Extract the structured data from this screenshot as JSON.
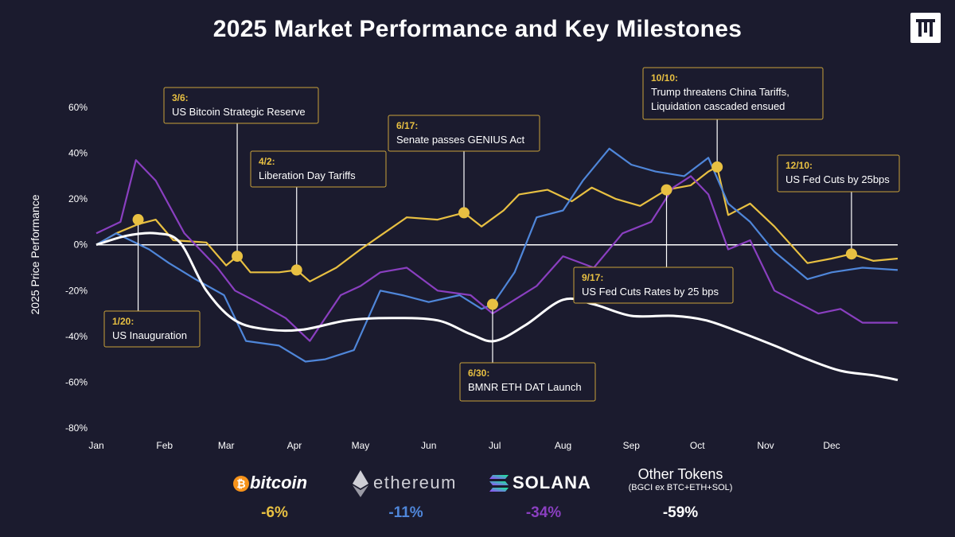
{
  "title": "2025 Market Performance and Key Milestones",
  "logo": {
    "icon": "brand-logo-icon"
  },
  "chart_data": {
    "type": "line",
    "title": "2025 Market Performance and Key Milestones",
    "xlabel": "",
    "ylabel": "2025 Price Performance",
    "xlim": [
      "2025-01-01",
      "2025-12-31"
    ],
    "ylim": [
      -80,
      60
    ],
    "x_ticks": [
      "Jan",
      "Feb",
      "Mar",
      "Apr",
      "May",
      "Jun",
      "Jul",
      "Aug",
      "Sep",
      "Oct",
      "Nov",
      "Dec"
    ],
    "y_ticks": [
      "60%",
      "40%",
      "20%",
      "0%",
      "-20%",
      "-40%",
      "-60%",
      "-80%"
    ],
    "grid": false,
    "series": [
      {
        "name": "Other Tokens",
        "color": "#ffffff",
        "x": [
          "2025-01-01",
          "2025-01-15",
          "2025-01-28",
          "2025-02-08",
          "2025-02-20",
          "2025-03-05",
          "2025-03-20",
          "2025-04-05",
          "2025-04-25",
          "2025-05-15",
          "2025-06-05",
          "2025-06-20",
          "2025-07-01",
          "2025-07-15",
          "2025-08-01",
          "2025-08-15",
          "2025-09-01",
          "2025-09-20",
          "2025-10-05",
          "2025-10-20",
          "2025-11-05",
          "2025-11-20",
          "2025-12-05",
          "2025-12-20",
          "2025-12-31"
        ],
        "y": [
          0,
          4,
          5,
          1,
          -20,
          -33,
          -37,
          -37,
          -33,
          -32,
          -33,
          -39,
          -42,
          -35,
          -24,
          -26,
          -31,
          -31,
          -33,
          -38,
          -44,
          -50,
          -55,
          -57,
          -59
        ]
      },
      {
        "name": "bitcoin",
        "color": "#e8c042",
        "x": [
          "2025-01-01",
          "2025-01-10",
          "2025-01-20",
          "2025-01-28",
          "2025-02-05",
          "2025-02-20",
          "2025-03-01",
          "2025-03-06",
          "2025-03-12",
          "2025-03-25",
          "2025-04-02",
          "2025-04-08",
          "2025-04-20",
          "2025-05-01",
          "2025-05-10",
          "2025-05-22",
          "2025-06-05",
          "2025-06-17",
          "2025-06-25",
          "2025-07-05",
          "2025-07-12",
          "2025-07-25",
          "2025-08-05",
          "2025-08-14",
          "2025-08-25",
          "2025-09-05",
          "2025-09-17",
          "2025-09-28",
          "2025-10-06",
          "2025-10-10",
          "2025-10-15",
          "2025-10-25",
          "2025-11-05",
          "2025-11-20",
          "2025-12-01",
          "2025-12-10",
          "2025-12-20",
          "2025-12-31"
        ],
        "y": [
          0,
          5,
          9,
          11,
          2,
          1,
          -9,
          -5,
          -12,
          -12,
          -11,
          -16,
          -10,
          -2,
          4,
          12,
          11,
          14,
          8,
          15,
          22,
          24,
          19,
          25,
          20,
          17,
          24,
          26,
          32,
          34,
          13,
          18,
          8,
          -8,
          -6,
          -4,
          -7,
          -6
        ]
      },
      {
        "name": "ethereum",
        "color": "#4f86d9",
        "x": [
          "2025-01-01",
          "2025-01-10",
          "2025-01-25",
          "2025-02-03",
          "2025-02-15",
          "2025-02-28",
          "2025-03-10",
          "2025-03-25",
          "2025-04-06",
          "2025-04-15",
          "2025-04-28",
          "2025-05-10",
          "2025-05-20",
          "2025-06-01",
          "2025-06-15",
          "2025-06-25",
          "2025-06-30",
          "2025-07-10",
          "2025-07-20",
          "2025-08-01",
          "2025-08-10",
          "2025-08-22",
          "2025-09-01",
          "2025-09-12",
          "2025-09-25",
          "2025-10-06",
          "2025-10-15",
          "2025-10-25",
          "2025-11-05",
          "2025-11-20",
          "2025-12-01",
          "2025-12-15",
          "2025-12-31"
        ],
        "y": [
          0,
          5,
          -2,
          -8,
          -15,
          -22,
          -42,
          -44,
          -51,
          -50,
          -46,
          -20,
          -22,
          -25,
          -22,
          -28,
          -26,
          -12,
          12,
          15,
          28,
          42,
          35,
          32,
          30,
          38,
          18,
          10,
          -3,
          -15,
          -12,
          -10,
          -11
        ]
      },
      {
        "name": "SOLANA",
        "color": "#8a3fc0",
        "x": [
          "2025-01-01",
          "2025-01-12",
          "2025-01-19",
          "2025-01-28",
          "2025-02-10",
          "2025-02-25",
          "2025-03-05",
          "2025-03-15",
          "2025-03-28",
          "2025-04-08",
          "2025-04-22",
          "2025-05-01",
          "2025-05-10",
          "2025-05-22",
          "2025-06-05",
          "2025-06-20",
          "2025-06-30",
          "2025-07-10",
          "2025-07-20",
          "2025-08-01",
          "2025-08-15",
          "2025-08-28",
          "2025-09-10",
          "2025-09-20",
          "2025-09-28",
          "2025-10-06",
          "2025-10-15",
          "2025-10-25",
          "2025-11-05",
          "2025-11-15",
          "2025-11-25",
          "2025-12-05",
          "2025-12-15",
          "2025-12-31"
        ],
        "y": [
          5,
          10,
          37,
          28,
          5,
          -10,
          -20,
          -25,
          -32,
          -42,
          -22,
          -18,
          -12,
          -10,
          -20,
          -22,
          -30,
          -24,
          -18,
          -5,
          -10,
          5,
          10,
          25,
          30,
          22,
          -2,
          2,
          -20,
          -25,
          -30,
          -28,
          -34,
          -34
        ]
      }
    ],
    "milestones": [
      {
        "date": "2025-01-20",
        "value": 11,
        "series": "bitcoin",
        "label_date": "1/20:",
        "label_text": "US Inauguration"
      },
      {
        "date": "2025-03-06",
        "value": -5,
        "series": "bitcoin",
        "label_date": "3/6:",
        "label_text": "US Bitcoin Strategic Reserve"
      },
      {
        "date": "2025-04-02",
        "value": -11,
        "series": "bitcoin",
        "label_date": "4/2:",
        "label_text": "Liberation Day Tariffs"
      },
      {
        "date": "2025-06-17",
        "value": 14,
        "series": "bitcoin",
        "label_date": "6/17:",
        "label_text": "Senate passes GENIUS Act"
      },
      {
        "date": "2025-06-30",
        "value": -26,
        "series": "ethereum",
        "label_date": "6/30:",
        "label_text": "BMNR ETH DAT Launch"
      },
      {
        "date": "2025-09-17",
        "value": 24,
        "series": "bitcoin",
        "label_date": "9/17:",
        "label_text": "US Fed Cuts Rates by 25 bps"
      },
      {
        "date": "2025-10-10",
        "value": 34,
        "series": "bitcoin",
        "label_date": "10/10:",
        "label_text": "Trump threatens China Tariffs,",
        "label_text2": "Liquidation cascaded ensued"
      },
      {
        "date": "2025-12-10",
        "value": -4,
        "series": "bitcoin",
        "label_date": "12/10:",
        "label_text": "US Fed Cuts by 25bps"
      }
    ]
  },
  "legend": [
    {
      "name": "bitcoin",
      "sub": "",
      "pct": "-6%",
      "color": "#e8c042",
      "icon": "bitcoin-logo-icon"
    },
    {
      "name": "ethereum",
      "sub": "",
      "pct": "-11%",
      "color": "#4f86d9",
      "icon": "ethereum-logo-icon"
    },
    {
      "name": "SOLANA",
      "sub": "",
      "pct": "-34%",
      "color": "#8a3fc0",
      "icon": "solana-logo-icon"
    },
    {
      "name": "Other Tokens",
      "sub": "(BGCI ex BTC+ETH+SOL)",
      "pct": "-59%",
      "color": "#ffffff",
      "icon": ""
    }
  ]
}
